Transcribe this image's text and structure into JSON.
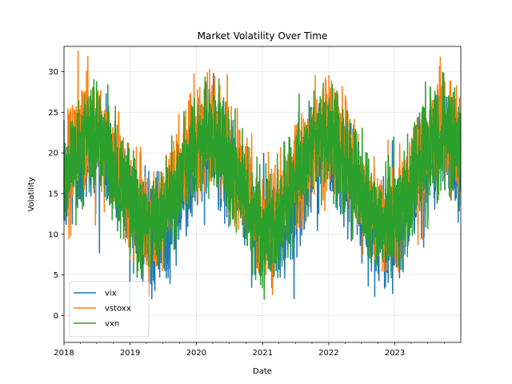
{
  "chart_data": {
    "type": "line",
    "title": "Market Volatility Over Time",
    "xlabel": "Date",
    "ylabel": "Volatility",
    "x_range": [
      "2018-01-01",
      "2023-12-31"
    ],
    "x_ticks": [
      "2018",
      "2019",
      "2020",
      "2021",
      "2022",
      "2023"
    ],
    "ylim": [
      -3.3,
      33.1
    ],
    "y_ticks": [
      0,
      5,
      10,
      15,
      20,
      25,
      30
    ],
    "grid": true,
    "legend_position": "lower-left",
    "series": [
      {
        "name": "vix",
        "color": "#1f77b4",
        "x": [
          "2018-01",
          "2018-02",
          "2018-03",
          "2018-04",
          "2018-05",
          "2018-06",
          "2018-07",
          "2018-08",
          "2018-09",
          "2018-10",
          "2018-11",
          "2018-12",
          "2019-01",
          "2019-02",
          "2019-03",
          "2019-04",
          "2019-05",
          "2019-06",
          "2019-07",
          "2019-08",
          "2019-09",
          "2019-10",
          "2019-11",
          "2019-12",
          "2020-01",
          "2020-02",
          "2020-03",
          "2020-04",
          "2020-05",
          "2020-06",
          "2020-07",
          "2020-08",
          "2020-09",
          "2020-10",
          "2020-11",
          "2020-12",
          "2021-01",
          "2021-02",
          "2021-03",
          "2021-04",
          "2021-05",
          "2021-06",
          "2021-07",
          "2021-08",
          "2021-09",
          "2021-10",
          "2021-11",
          "2021-12",
          "2022-01",
          "2022-02",
          "2022-03",
          "2022-04",
          "2022-05",
          "2022-06",
          "2022-07",
          "2022-08",
          "2022-09",
          "2022-10",
          "2022-11",
          "2022-12",
          "2023-01",
          "2023-02",
          "2023-03",
          "2023-04",
          "2023-05",
          "2023-06",
          "2023-07",
          "2023-08",
          "2023-09",
          "2023-10",
          "2023-11",
          "2023-12"
        ],
        "values": [
          15.2,
          16.4,
          17.8,
          19.0,
          20.0,
          20.6,
          20.8,
          20.4,
          19.6,
          18.4,
          16.9,
          15.4,
          13.9,
          12.5,
          11.3,
          10.5,
          10.0,
          10.1,
          10.6,
          11.6,
          13.0,
          14.6,
          16.2,
          17.8,
          19.1,
          20.1,
          20.7,
          20.9,
          20.5,
          19.6,
          18.3,
          16.8,
          15.2,
          13.7,
          12.3,
          11.2,
          10.4,
          10.0,
          10.1,
          10.7,
          11.8,
          13.2,
          14.8,
          16.4,
          17.9,
          19.2,
          20.1,
          20.7,
          20.8,
          20.3,
          19.4,
          18.1,
          16.5,
          14.9,
          13.4,
          12.0,
          11.0,
          10.3,
          10.0,
          10.2,
          10.8,
          11.9,
          13.4,
          15.0,
          16.6,
          18.1,
          19.3,
          20.2,
          20.7,
          20.7,
          20.2,
          19.3
        ]
      },
      {
        "name": "vstoxx",
        "color": "#ff7f0e",
        "x": [
          "2018-01",
          "2018-02",
          "2018-03",
          "2018-04",
          "2018-05",
          "2018-06",
          "2018-07",
          "2018-08",
          "2018-09",
          "2018-10",
          "2018-11",
          "2018-12",
          "2019-01",
          "2019-02",
          "2019-03",
          "2019-04",
          "2019-05",
          "2019-06",
          "2019-07",
          "2019-08",
          "2019-09",
          "2019-10",
          "2019-11",
          "2019-12",
          "2020-01",
          "2020-02",
          "2020-03",
          "2020-04",
          "2020-05",
          "2020-06",
          "2020-07",
          "2020-08",
          "2020-09",
          "2020-10",
          "2020-11",
          "2020-12",
          "2021-01",
          "2021-02",
          "2021-03",
          "2021-04",
          "2021-05",
          "2021-06",
          "2021-07",
          "2021-08",
          "2021-09",
          "2021-10",
          "2021-11",
          "2021-12",
          "2022-01",
          "2022-02",
          "2022-03",
          "2022-04",
          "2022-05",
          "2022-06",
          "2022-07",
          "2022-08",
          "2022-09",
          "2022-10",
          "2022-11",
          "2022-12",
          "2023-01",
          "2023-02",
          "2023-03",
          "2023-04",
          "2023-05",
          "2023-06",
          "2023-07",
          "2023-08",
          "2023-09",
          "2023-10",
          "2023-11",
          "2023-12"
        ],
        "values": [
          18.0,
          19.4,
          20.8,
          21.9,
          22.6,
          22.9,
          22.7,
          22.0,
          20.9,
          19.5,
          17.9,
          16.3,
          14.8,
          13.5,
          12.5,
          11.9,
          11.8,
          12.2,
          13.1,
          14.4,
          16.0,
          17.7,
          19.3,
          20.7,
          21.8,
          22.5,
          22.9,
          22.8,
          22.2,
          21.2,
          19.8,
          18.2,
          16.6,
          15.1,
          13.8,
          12.7,
          12.0,
          11.8,
          12.1,
          12.9,
          14.1,
          15.6,
          17.3,
          18.9,
          20.4,
          21.6,
          22.4,
          22.9,
          22.9,
          22.4,
          21.5,
          20.2,
          18.6,
          17.0,
          15.4,
          14.0,
          12.9,
          12.1,
          11.8,
          12.0,
          12.7,
          13.8,
          15.2,
          16.9,
          18.5,
          20.0,
          21.3,
          22.2,
          22.8,
          23.0,
          22.6,
          21.8
        ]
      },
      {
        "name": "vxn",
        "color": "#2ca02c",
        "x": [
          "2018-01",
          "2018-02",
          "2018-03",
          "2018-04",
          "2018-05",
          "2018-06",
          "2018-07",
          "2018-08",
          "2018-09",
          "2018-10",
          "2018-11",
          "2018-12",
          "2019-01",
          "2019-02",
          "2019-03",
          "2019-04",
          "2019-05",
          "2019-06",
          "2019-07",
          "2019-08",
          "2019-09",
          "2019-10",
          "2019-11",
          "2019-12",
          "2020-01",
          "2020-02",
          "2020-03",
          "2020-04",
          "2020-05",
          "2020-06",
          "2020-07",
          "2020-08",
          "2020-09",
          "2020-10",
          "2020-11",
          "2020-12",
          "2021-01",
          "2021-02",
          "2021-03",
          "2021-04",
          "2021-05",
          "2021-06",
          "2021-07",
          "2021-08",
          "2021-09",
          "2021-10",
          "2021-11",
          "2021-12",
          "2022-01",
          "2022-02",
          "2022-03",
          "2022-04",
          "2022-05",
          "2022-06",
          "2022-07",
          "2022-08",
          "2022-09",
          "2022-10",
          "2022-11",
          "2022-12",
          "2023-01",
          "2023-02",
          "2023-03",
          "2023-04",
          "2023-05",
          "2023-06",
          "2023-07",
          "2023-08",
          "2023-09",
          "2023-10",
          "2023-11",
          "2023-12"
        ],
        "values": [
          17.2,
          18.6,
          19.9,
          21.0,
          21.7,
          22.0,
          21.8,
          21.1,
          20.0,
          18.6,
          17.0,
          15.4,
          13.9,
          12.6,
          11.6,
          11.0,
          10.9,
          11.3,
          12.2,
          13.5,
          15.1,
          16.8,
          18.4,
          19.8,
          20.9,
          21.6,
          22.0,
          21.9,
          21.3,
          20.3,
          18.9,
          17.3,
          15.7,
          14.2,
          12.9,
          11.8,
          11.1,
          10.9,
          11.2,
          12.0,
          13.2,
          14.7,
          16.4,
          18.0,
          19.5,
          20.7,
          21.5,
          22.0,
          22.0,
          21.5,
          20.6,
          19.3,
          17.7,
          16.1,
          14.5,
          13.1,
          12.0,
          11.2,
          10.9,
          11.1,
          11.8,
          12.9,
          14.3,
          16.0,
          17.6,
          19.1,
          20.4,
          21.3,
          21.9,
          22.1,
          21.7,
          20.9
        ]
      }
    ]
  }
}
